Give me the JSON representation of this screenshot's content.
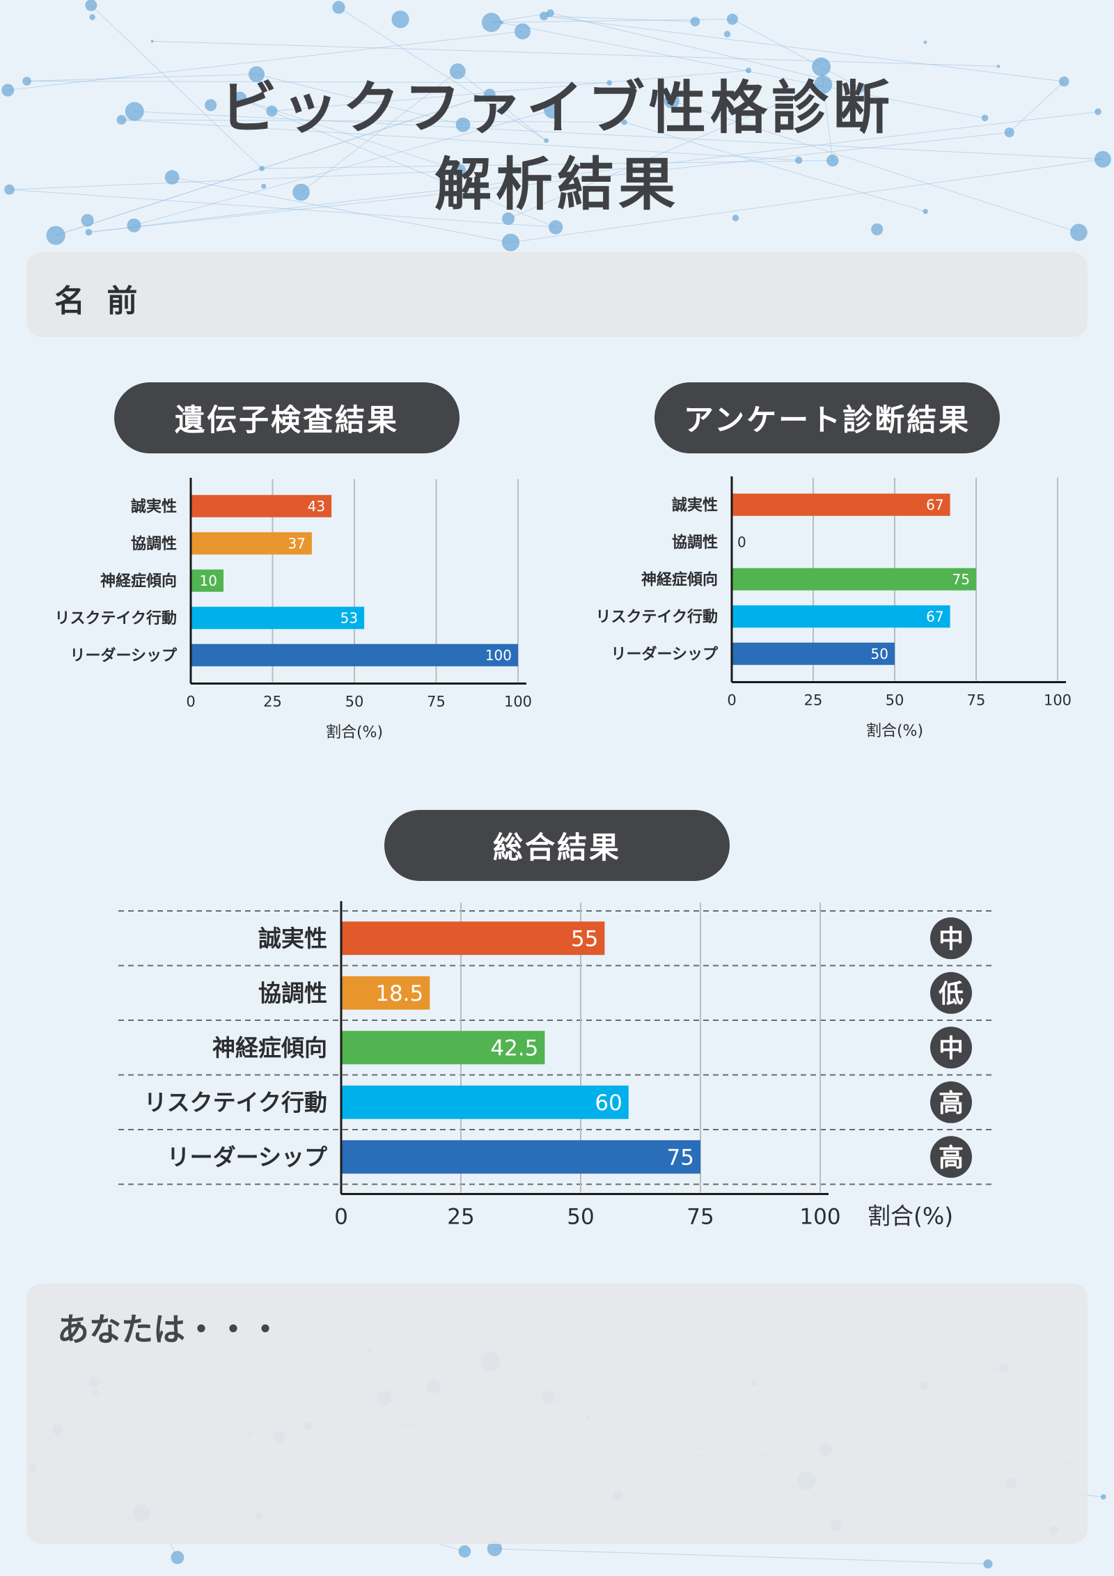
{
  "title": {
    "line1": "ビックファイブ性格診断",
    "line2": "解析結果"
  },
  "name_field": {
    "label": "名 前"
  },
  "gene_section": {
    "heading": "遺伝子検査結果"
  },
  "survey_section": {
    "heading": "アンケート診断結果"
  },
  "overall_section": {
    "heading": "総合結果"
  },
  "summary_box": {
    "label": "あなたは・・・"
  },
  "colors": {
    "誠実性": "#e05a2b",
    "協調性": "#e8952e",
    "神経症傾向": "#52b450",
    "リスクテイク行動": "#00b0ea",
    "リーダーシップ": "#2a6db8",
    "pill": "#444548",
    "background": "#eaf2f9"
  },
  "chart_data": [
    {
      "type": "bar",
      "orientation": "horizontal",
      "title": "遺伝子検査結果",
      "categories": [
        "誠実性",
        "協調性",
        "神経症傾向",
        "リスクテイク行動",
        "リーダーシップ"
      ],
      "values": [
        43,
        37,
        10,
        53,
        100
      ],
      "xlabel": "割合(%)",
      "xlim": [
        0,
        100
      ],
      "xticks": [
        0,
        25,
        50,
        75,
        100
      ],
      "grid": true
    },
    {
      "type": "bar",
      "orientation": "horizontal",
      "title": "アンケート診断結果",
      "categories": [
        "誠実性",
        "協調性",
        "神経症傾向",
        "リスクテイク行動",
        "リーダーシップ"
      ],
      "values": [
        67,
        0,
        75,
        67,
        50
      ],
      "xlabel": "割合(%)",
      "xlim": [
        0,
        100
      ],
      "xticks": [
        0,
        25,
        50,
        75,
        100
      ],
      "grid": true
    },
    {
      "type": "bar",
      "orientation": "horizontal",
      "title": "総合結果",
      "categories": [
        "誠実性",
        "協調性",
        "神経症傾向",
        "リスクテイク行動",
        "リーダーシップ"
      ],
      "values": [
        55,
        18.5,
        42.5,
        60,
        75
      ],
      "levels": [
        "中",
        "低",
        "中",
        "高",
        "高"
      ],
      "xlabel": "割合(%)",
      "xlim": [
        0,
        100
      ],
      "xticks": [
        0,
        25,
        50,
        75,
        100
      ],
      "grid": true
    }
  ]
}
